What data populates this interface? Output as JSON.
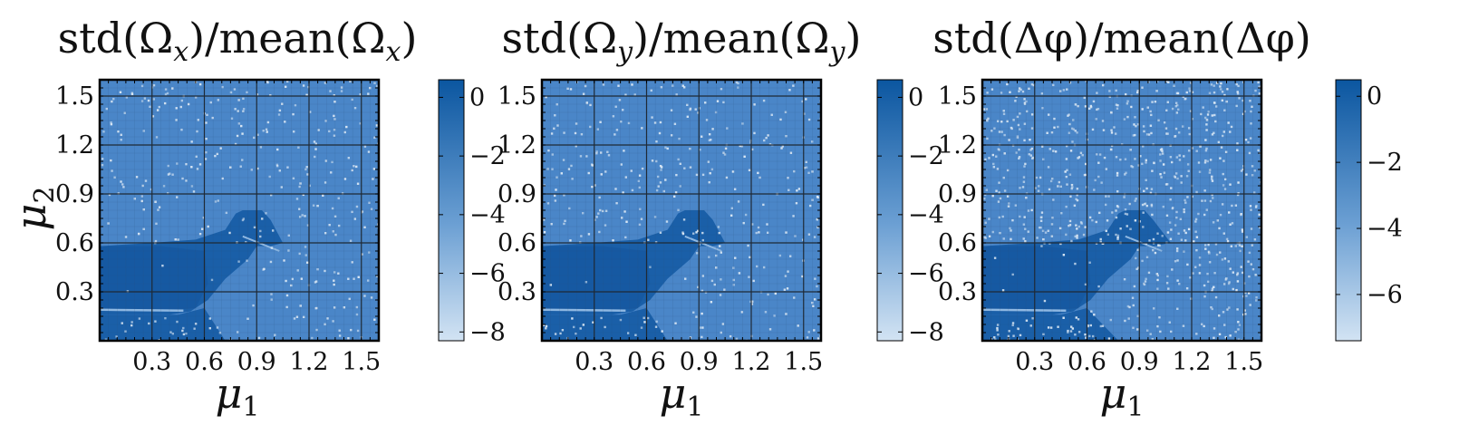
{
  "chart_data": [
    {
      "type": "heatmap",
      "title": "std(Ω_x)/mean(Ω_x)",
      "title_parts": {
        "pre": "std(Ω",
        "sub": "x",
        "mid": ")/mean(Ω",
        "sub2": "x",
        "post": ")"
      },
      "xlabel": "μ",
      "xlabel_sub": "1",
      "ylabel": "μ",
      "ylabel_sub": "2",
      "xlim": [
        0.0,
        1.6
      ],
      "ylim": [
        0.0,
        1.6
      ],
      "xticks": [
        0.3,
        0.6,
        0.9,
        1.2,
        1.5
      ],
      "xtick_labels": [
        "0.3",
        "0.6",
        "0.9",
        "1.2",
        "1.5"
      ],
      "yticks": [
        0.3,
        0.6,
        0.9,
        1.2,
        1.5
      ],
      "ytick_labels": [
        "0.3",
        "0.6",
        "0.9",
        "1.2",
        "1.5"
      ],
      "grid": true,
      "colorbar": {
        "range": [
          -8.3,
          0.6
        ],
        "ticks": [
          0,
          -2,
          -4,
          -6,
          -8
        ],
        "tick_labels": [
          "0",
          "−2",
          "−4",
          "−6",
          "−8"
        ]
      }
    },
    {
      "type": "heatmap",
      "title": "std(Ω_y)/mean(Ω_y)",
      "title_parts": {
        "pre": "std(Ω",
        "sub": "y",
        "mid": ")/mean(Ω",
        "sub2": "y",
        "post": ")"
      },
      "xlabel": "μ",
      "xlabel_sub": "1",
      "ylabel": "",
      "ylabel_sub": "",
      "xlim": [
        0.0,
        1.6
      ],
      "ylim": [
        0.0,
        1.6
      ],
      "xticks": [
        0.3,
        0.6,
        0.9,
        1.2,
        1.5
      ],
      "xtick_labels": [
        "0.3",
        "0.6",
        "0.9",
        "1.2",
        "1.5"
      ],
      "yticks": [
        0.3,
        0.6,
        0.9,
        1.2,
        1.5
      ],
      "ytick_labels": [
        "0.3",
        "0.6",
        "0.9",
        "1.2",
        "1.5"
      ],
      "grid": true,
      "colorbar": {
        "range": [
          -8.3,
          0.6
        ],
        "ticks": [
          0,
          -2,
          -4,
          -6,
          -8
        ],
        "tick_labels": [
          "0",
          "−2",
          "−4",
          "−6",
          "−8"
        ]
      }
    },
    {
      "type": "heatmap",
      "title": "std(Δφ)/mean(Δφ)",
      "title_parts": {
        "pre": "std(Δφ)/mean(Δφ)",
        "sub": "",
        "mid": "",
        "sub2": "",
        "post": ""
      },
      "xlabel": "μ",
      "xlabel_sub": "1",
      "ylabel": "",
      "ylabel_sub": "",
      "xlim": [
        0.0,
        1.6
      ],
      "ylim": [
        0.0,
        1.6
      ],
      "xticks": [
        0.3,
        0.6,
        0.9,
        1.2,
        1.5
      ],
      "xtick_labels": [
        "0.3",
        "0.6",
        "0.9",
        "1.2",
        "1.5"
      ],
      "yticks": [
        0.3,
        0.6,
        0.9,
        1.2,
        1.5
      ],
      "ytick_labels": [
        "0.3",
        "0.6",
        "0.9",
        "1.2",
        "1.5"
      ],
      "grid": true,
      "colorbar": {
        "range": [
          -7.4,
          0.5
        ],
        "ticks": [
          0,
          -2,
          -4,
          -6
        ],
        "tick_labels": [
          "0",
          "−2",
          "−4",
          "−6"
        ]
      }
    }
  ],
  "colors": {
    "background_field": "#4a86c8",
    "dark_region": "#1a5fa8",
    "darkest_region": "#1557a0",
    "cmap_high": "#0b56a0",
    "cmap_low": "#d2e3f3",
    "grid": "#1f2a36",
    "speckle": "#dbe8f5"
  }
}
